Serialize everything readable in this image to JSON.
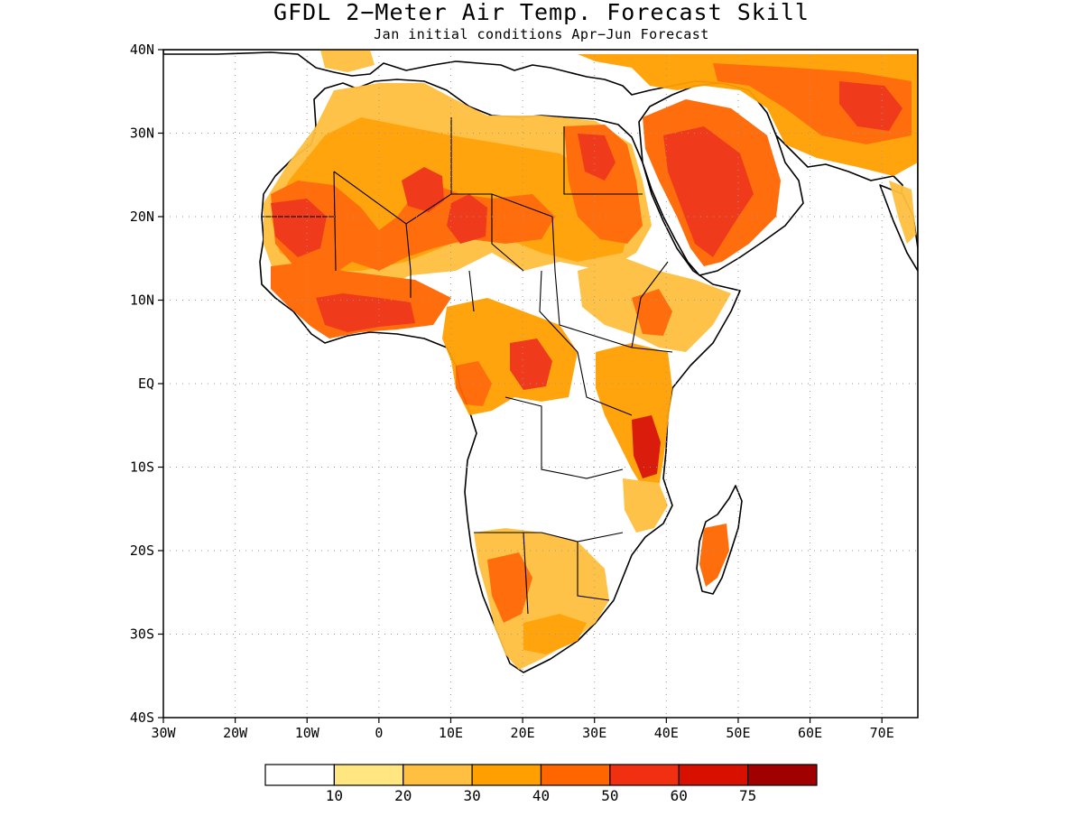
{
  "title": "GFDL 2−Meter Air Temp. Forecast Skill",
  "subtitle": "Jan initial conditions  Apr−Jun Forecast",
  "map": {
    "lon_range": [
      -30,
      75
    ],
    "lat_range": [
      -40,
      40
    ],
    "y_ticks": [
      "40N",
      "30N",
      "20N",
      "10N",
      "EQ",
      "10S",
      "20S",
      "30S",
      "40S"
    ],
    "x_ticks": [
      "30W",
      "20W",
      "10W",
      "0",
      "10E",
      "20E",
      "30E",
      "40E",
      "50E",
      "60E",
      "70E"
    ],
    "grid": "dotted"
  },
  "colorbar": {
    "colors": [
      "#ffffff",
      "#ffe680",
      "#ffbf40",
      "#ffa000",
      "#ff6600",
      "#f03010",
      "#d81000",
      "#a00000"
    ],
    "labels": [
      "10",
      "20",
      "30",
      "40",
      "50",
      "60",
      "75"
    ]
  }
}
